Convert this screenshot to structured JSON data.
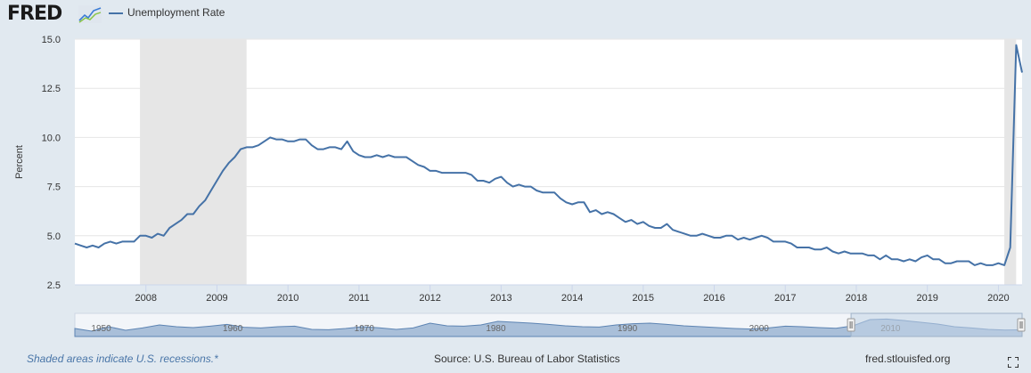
{
  "header": {
    "logo_text": "FRED",
    "logo_icon": "fred-trend-lines-icon",
    "legend_label": "Unemployment Rate"
  },
  "footer": {
    "recession_note": "Shaded areas indicate U.S. recessions.*",
    "source": "Source: U.S. Bureau of Labor Statistics",
    "site": "fred.stlouisfed.org",
    "fullscreen_icon": "fullscreen-icon"
  },
  "colors": {
    "line": "#4572a7",
    "recession": "#e6e6e6",
    "background": "#e1e9f0",
    "plot": "#ffffff",
    "navigator_fill": "#a9bfd9",
    "navigator_window": "#c3d3e6"
  },
  "chart_data": {
    "type": "line",
    "ylabel": "Percent",
    "ylim": [
      2.5,
      15.0
    ],
    "yticks": [
      "2.5",
      "5.0",
      "7.5",
      "10.0",
      "12.5",
      "15.0"
    ],
    "xlim": [
      "2007-01",
      "2020-05"
    ],
    "xticks": [
      "2008",
      "2009",
      "2010",
      "2011",
      "2012",
      "2013",
      "2014",
      "2015",
      "2016",
      "2017",
      "2018",
      "2019",
      "2020"
    ],
    "grid": true,
    "legend_position": "top-left",
    "recessions": [
      [
        "2007-12",
        "2009-06"
      ],
      [
        "2020-02",
        "2020-04"
      ]
    ],
    "series": [
      {
        "name": "Unemployment Rate",
        "start": "2007-01",
        "frequency": "monthly",
        "values": [
          4.6,
          4.5,
          4.4,
          4.5,
          4.4,
          4.6,
          4.7,
          4.6,
          4.7,
          4.7,
          4.7,
          5.0,
          5.0,
          4.9,
          5.1,
          5.0,
          5.4,
          5.6,
          5.8,
          6.1,
          6.1,
          6.5,
          6.8,
          7.3,
          7.8,
          8.3,
          8.7,
          9.0,
          9.4,
          9.5,
          9.5,
          9.6,
          9.8,
          10.0,
          9.9,
          9.9,
          9.8,
          9.8,
          9.9,
          9.9,
          9.6,
          9.4,
          9.4,
          9.5,
          9.5,
          9.4,
          9.8,
          9.3,
          9.1,
          9.0,
          9.0,
          9.1,
          9.0,
          9.1,
          9.0,
          9.0,
          9.0,
          8.8,
          8.6,
          8.5,
          8.3,
          8.3,
          8.2,
          8.2,
          8.2,
          8.2,
          8.2,
          8.1,
          7.8,
          7.8,
          7.7,
          7.9,
          8.0,
          7.7,
          7.5,
          7.6,
          7.5,
          7.5,
          7.3,
          7.2,
          7.2,
          7.2,
          6.9,
          6.7,
          6.6,
          6.7,
          6.7,
          6.2,
          6.3,
          6.1,
          6.2,
          6.1,
          5.9,
          5.7,
          5.8,
          5.6,
          5.7,
          5.5,
          5.4,
          5.4,
          5.6,
          5.3,
          5.2,
          5.1,
          5.0,
          5.0,
          5.1,
          5.0,
          4.9,
          4.9,
          5.0,
          5.0,
          4.8,
          4.9,
          4.8,
          4.9,
          5.0,
          4.9,
          4.7,
          4.7,
          4.7,
          4.6,
          4.4,
          4.4,
          4.4,
          4.3,
          4.3,
          4.4,
          4.2,
          4.1,
          4.2,
          4.1,
          4.1,
          4.1,
          4.0,
          4.0,
          3.8,
          4.0,
          3.8,
          3.8,
          3.7,
          3.8,
          3.7,
          3.9,
          4.0,
          3.8,
          3.8,
          3.6,
          3.6,
          3.7,
          3.7,
          3.7,
          3.5,
          3.6,
          3.5,
          3.5,
          3.6,
          3.5,
          4.4,
          14.7,
          13.3
        ]
      }
    ],
    "navigator": {
      "xticks": [
        "1950",
        "1960",
        "1970",
        "1980",
        "1990",
        "2000",
        "2010"
      ],
      "selected_range": [
        "2007-01",
        "2020-05"
      ]
    }
  }
}
